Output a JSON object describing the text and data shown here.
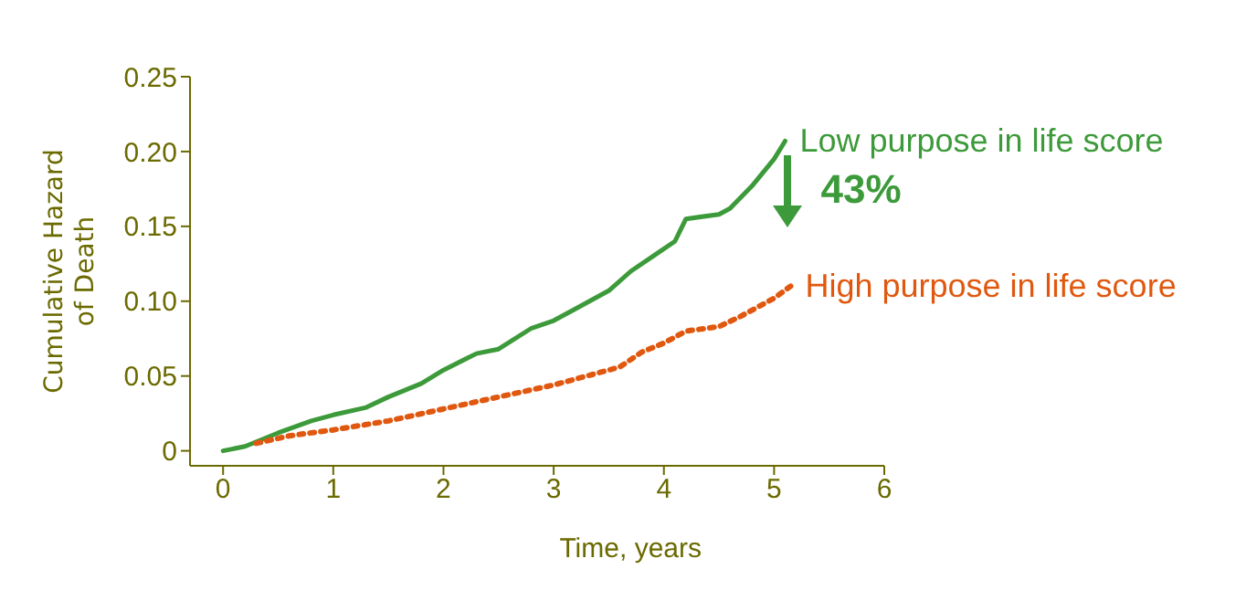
{
  "chart_data": {
    "type": "line",
    "xlabel": "Time, years",
    "ylabel": "Cumulative Hazard of Death",
    "xlim": [
      -0.3,
      6
    ],
    "xticks": [
      0,
      1,
      2,
      3,
      4,
      5,
      6
    ],
    "ylim": [
      -0.01,
      0.25
    ],
    "yticks": [
      0,
      0.05,
      {
        "value": 0.1,
        "label": "0.10"
      },
      0.15,
      {
        "value": 0.2,
        "label": "0.20"
      },
      0.25
    ],
    "marker": "none",
    "annotations": [
      "43%"
    ],
    "series": [
      {
        "name": "Low purpose in life score",
        "color": "#3d9a3a",
        "line_style": "solid",
        "x": [
          0,
          0.2,
          0.5,
          0.8,
          1,
          1.3,
          1.5,
          1.8,
          2,
          2.3,
          2.5,
          2.8,
          3,
          3.2,
          3.5,
          3.7,
          3.9,
          4.1,
          4.2,
          4.5,
          4.6,
          4.8,
          5,
          5.1
        ],
        "values": [
          0,
          0.003,
          0.012,
          0.02,
          0.024,
          0.029,
          0.036,
          0.045,
          0.054,
          0.065,
          0.068,
          0.082,
          0.087,
          0.095,
          0.107,
          0.12,
          0.13,
          0.14,
          0.155,
          0.158,
          0.162,
          0.177,
          0.195,
          0.207
        ]
      },
      {
        "name": "High purpose in life score",
        "color": "#e0580f",
        "line_style": "dotted",
        "x": [
          0.3,
          0.6,
          1,
          1.5,
          2,
          2.5,
          3,
          3.3,
          3.6,
          3.8,
          4,
          4.2,
          4.5,
          4.7,
          5,
          5.15
        ],
        "values": [
          0.005,
          0.01,
          0.014,
          0.02,
          0.028,
          0.036,
          0.044,
          0.05,
          0.056,
          0.066,
          0.072,
          0.08,
          0.083,
          0.09,
          0.102,
          0.11
        ]
      }
    ]
  }
}
